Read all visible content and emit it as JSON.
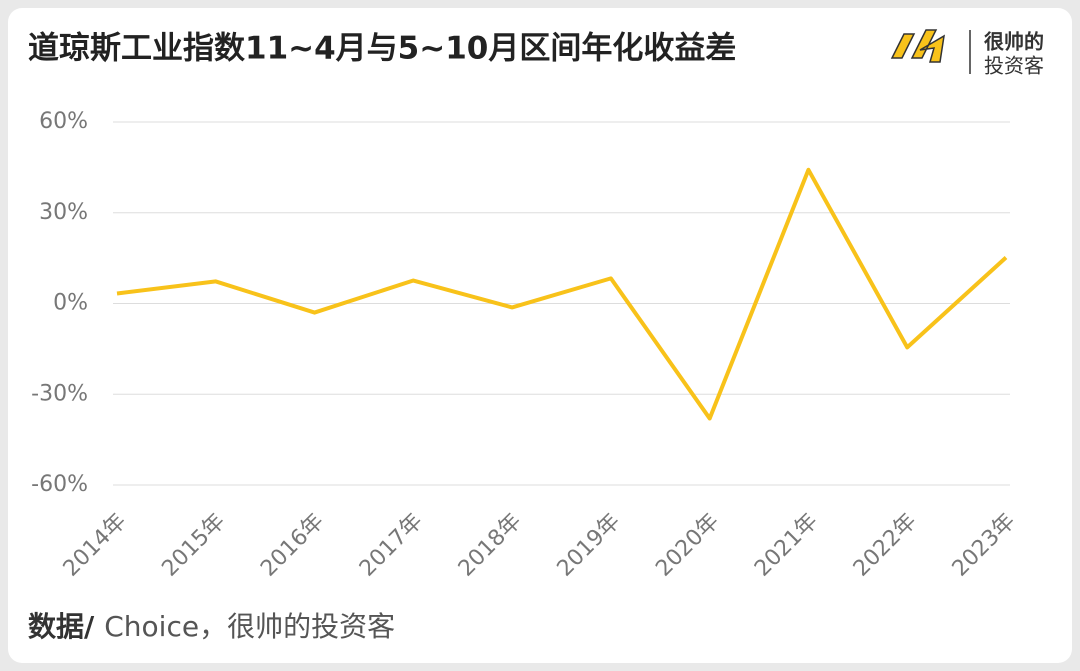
{
  "chart_data": {
    "type": "line",
    "title": "道琼斯工业指数11~4月与5~10月区间年化收益差",
    "brand": [
      "很帅的",
      "投资客"
    ],
    "source_label": "数据/",
    "source_text": "Choice，很帅的投资客",
    "categories": [
      "2014年",
      "2015年",
      "2016年",
      "2017年",
      "2018年",
      "2019年",
      "2020年",
      "2021年",
      "2022年",
      "2023年"
    ],
    "series": [
      {
        "color": "#f8c21a",
        "values": [
          3.3,
          7.3,
          -3,
          7.6,
          -1.3,
          8.3,
          -38,
          44.2,
          -14.5,
          15.2
        ]
      }
    ],
    "ylim": [
      -60,
      60
    ],
    "yticks": [
      {
        "value": -60,
        "label": "-60%"
      },
      {
        "value": -30,
        "label": "-30%"
      },
      {
        "value": 0,
        "label": "0%"
      },
      {
        "value": 30,
        "label": "30%"
      },
      {
        "value": 60,
        "label": "60%"
      }
    ],
    "grid": true
  }
}
